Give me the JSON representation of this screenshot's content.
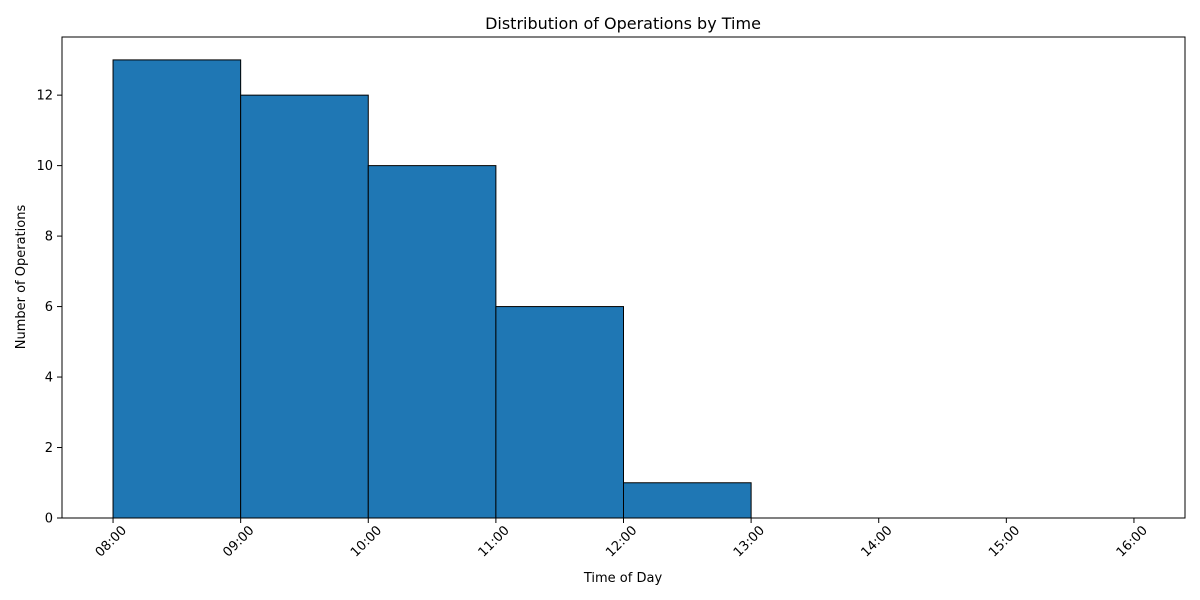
{
  "chart_data": {
    "type": "bar",
    "title": "Distribution of Operations by Time",
    "xlabel": "Time of Day",
    "ylabel": "Number of Operations",
    "bins": [
      {
        "start": "08:00",
        "end": "09:00",
        "value": 13
      },
      {
        "start": "09:00",
        "end": "10:00",
        "value": 12
      },
      {
        "start": "10:00",
        "end": "11:00",
        "value": 10
      },
      {
        "start": "11:00",
        "end": "12:00",
        "value": 6
      },
      {
        "start": "12:00",
        "end": "13:00",
        "value": 1
      },
      {
        "start": "13:00",
        "end": "14:00",
        "value": 0
      },
      {
        "start": "14:00",
        "end": "15:00",
        "value": 0
      },
      {
        "start": "15:00",
        "end": "16:00",
        "value": 0
      }
    ],
    "x_ticks": [
      "08:00",
      "09:00",
      "10:00",
      "11:00",
      "12:00",
      "13:00",
      "14:00",
      "15:00",
      "16:00"
    ],
    "y_ticks": [
      0,
      2,
      4,
      6,
      8,
      10,
      12
    ],
    "xlim": [
      "07:36",
      "16:24"
    ],
    "ylim": [
      0,
      13.65
    ],
    "grid": false,
    "bar_color": "#1f77b4",
    "edge_color": "#000000"
  }
}
